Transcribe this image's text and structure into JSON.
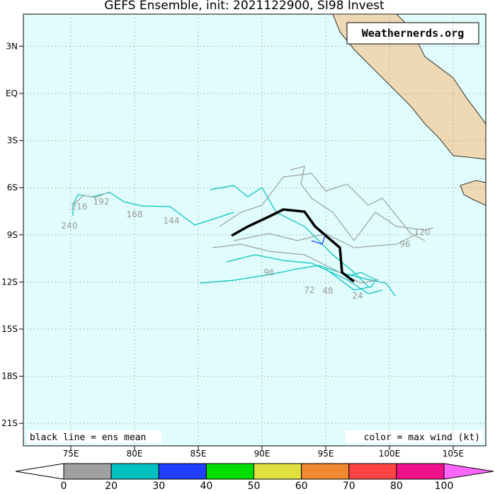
{
  "title": "GEFS Ensemble, init: 2021122900, SI98 Invest",
  "watermark": "Weathernerds.org",
  "notes": {
    "left": "black line = ens mean",
    "right": "color = max wind (kt)"
  },
  "map": {
    "lon_ticks": [
      {
        "value": 75,
        "label": "75E"
      },
      {
        "value": 80,
        "label": "80E"
      },
      {
        "value": 85,
        "label": "85E"
      },
      {
        "value": 90,
        "label": "90E"
      },
      {
        "value": 95,
        "label": "95E"
      },
      {
        "value": 100,
        "label": "100E"
      },
      {
        "value": 105,
        "label": "105E"
      }
    ],
    "lat_ticks": [
      {
        "value": 3,
        "label": "3N"
      },
      {
        "value": 0,
        "label": "EQ"
      },
      {
        "value": -3,
        "label": "3S"
      },
      {
        "value": -6,
        "label": "6S"
      },
      {
        "value": -9,
        "label": "9S"
      },
      {
        "value": -12,
        "label": "12S"
      },
      {
        "value": -15,
        "label": "15S"
      },
      {
        "value": -18,
        "label": "18S"
      },
      {
        "value": -21,
        "label": "21S"
      }
    ]
  },
  "track_labels": [
    216,
    192,
    240,
    168,
    144,
    96,
    72,
    48,
    24,
    120,
    96
  ],
  "colorbar": {
    "labels": [
      0,
      20,
      30,
      40,
      50,
      60,
      70,
      80,
      100
    ],
    "colors": [
      "#a0a0a0",
      "#00c0c0",
      "#2040ff",
      "#00dd00",
      "#e0e040",
      "#f08a30",
      "#ff4444",
      "#f0108a"
    ],
    "extend_colors": [
      "#ffffff",
      "#ff66ff"
    ]
  }
}
